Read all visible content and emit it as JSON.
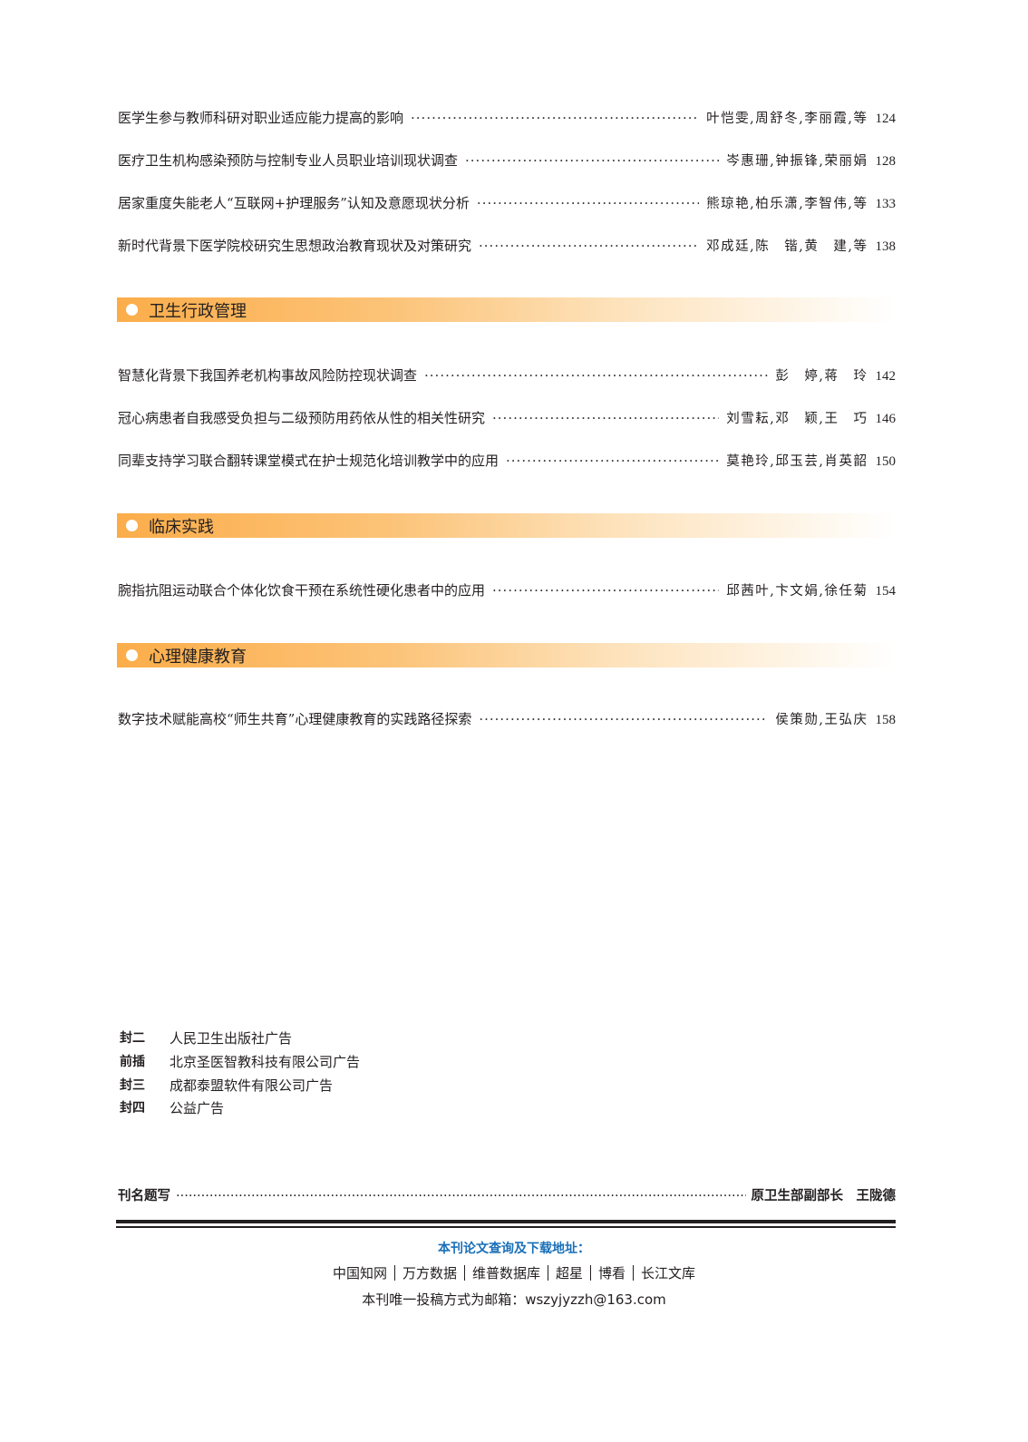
{
  "groups": [
    {
      "entries": [
        {
          "title": "医学生参与教师科研对职业适应能力提高的影响",
          "authors": "叶恺雯,周舒冬,李丽霞,等",
          "page": "124"
        },
        {
          "title": "医疗卫生机构感染预防与控制专业人员职业培训现状调查",
          "authors": "岑惠珊,钟振锋,荣丽娟",
          "page": "128"
        },
        {
          "title": "居家重度失能老人“互联网+护理服务”认知及意愿现状分析",
          "authors": "熊琼艳,柏乐潇,李智伟,等",
          "page": "133"
        },
        {
          "title": "新时代背景下医学院校研究生思想政治教育现状及对策研究",
          "authors": "邓成廷,陈　锴,黄　建,等",
          "page": "138"
        }
      ]
    },
    {
      "section": "卫生行政管理",
      "entries": [
        {
          "title": "智慧化背景下我国养老机构事故风险防控现状调查",
          "authors": "彭　婷,蒋　玲",
          "page": "142"
        },
        {
          "title": "冠心病患者自我感受负担与二级预防用药依从性的相关性研究",
          "authors": "刘雪耘,邓　颖,王　巧",
          "page": "146"
        },
        {
          "title": "同辈支持学习联合翻转课堂模式在护士规范化培训教学中的应用",
          "authors": "莫艳玲,邱玉芸,肖英韶",
          "page": "150"
        }
      ]
    },
    {
      "section": "临床实践",
      "entries": [
        {
          "title": "腕指抗阻运动联合个体化饮食干预在系统性硬化患者中的应用",
          "authors": "邱茜叶,卞文娟,徐任菊",
          "page": "154"
        }
      ]
    },
    {
      "section": "心理健康教育",
      "entries": [
        {
          "title": "数字技术赋能高校“师生共育”心理健康教育的实践路径探索",
          "authors": "侯策勋,王弘庆",
          "page": "158"
        }
      ]
    }
  ],
  "ads": [
    {
      "label": "封二",
      "text": "人民卫生出版社广告"
    },
    {
      "label": "前插",
      "text": "北京圣医智教科技有限公司广告"
    },
    {
      "label": "封三",
      "text": "成都泰盟软件有限公司广告"
    },
    {
      "label": "封四",
      "text": "公益广告"
    }
  ],
  "credit": {
    "label": "刊名题写",
    "value": "原卫生部副部长　王陇德"
  },
  "footer": {
    "heading": "本刊论文查询及下载地址：",
    "databases": [
      "中国知网",
      "万方数据",
      "维普数据库",
      "超星",
      "博看",
      "长江文库"
    ],
    "email": "本刊唯一投稿方式为邮箱：wszyjyzzh@163.com"
  },
  "colors": {
    "section_bar": "#fbad4a",
    "footer_heading": "#1a6fb8"
  }
}
